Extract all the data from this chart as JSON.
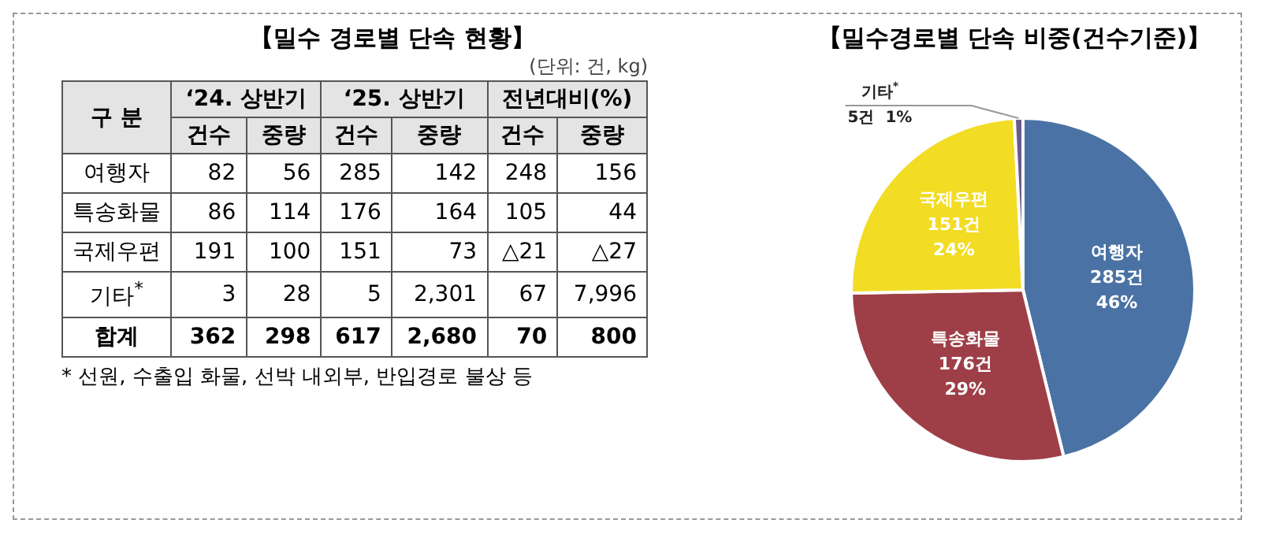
{
  "chart_data": [
    {
      "type": "other",
      "title": "【밀수 경로별 단속 현황】",
      "subtitle": "(단위: 건, kg)",
      "annotations": [
        "구 분",
        "‘24. 상반기",
        "‘25. 상반기",
        "전년대비(%)",
        "* 선원, 수출입 화물, 선박 내외부, 반입경로 불상 등"
      ],
      "categories": [
        "건수",
        "중량",
        "건수",
        "중량",
        "건수",
        "중량"
      ],
      "y_categories": [
        "여행자",
        "특송화물",
        "국제우편",
        "기타$^{*}$",
        "합계"
      ],
      "cell_labels": [
        [
          "82",
          "56",
          "285",
          "142",
          "248",
          "156"
        ],
        [
          "86",
          "114",
          "176",
          "164",
          "105",
          "44"
        ],
        [
          "191",
          "100",
          "151",
          "73",
          "△21",
          "△27"
        ],
        [
          "3",
          "28",
          "5",
          "2,301",
          "67",
          "7,996"
        ],
        [
          "362",
          "298",
          "617",
          "2,680",
          "70",
          "800"
        ]
      ]
    },
    {
      "type": "pie",
      "title": "【밀수경로별 단속 비중(건수기준)】",
      "categories": [
        "여행자",
        "특송화물",
        "국제우편",
        "기타$^{*}$"
      ],
      "values": [
        285,
        176,
        151,
        5
      ],
      "colors": [
        "#4a72a4",
        "#9e3f48",
        "#f2dc24",
        "#6a5a8c"
      ],
      "value_labels": [
        "285건\n46%",
        "176건\n29%",
        "151건\n24%",
        "5건  1%"
      ]
    }
  ]
}
